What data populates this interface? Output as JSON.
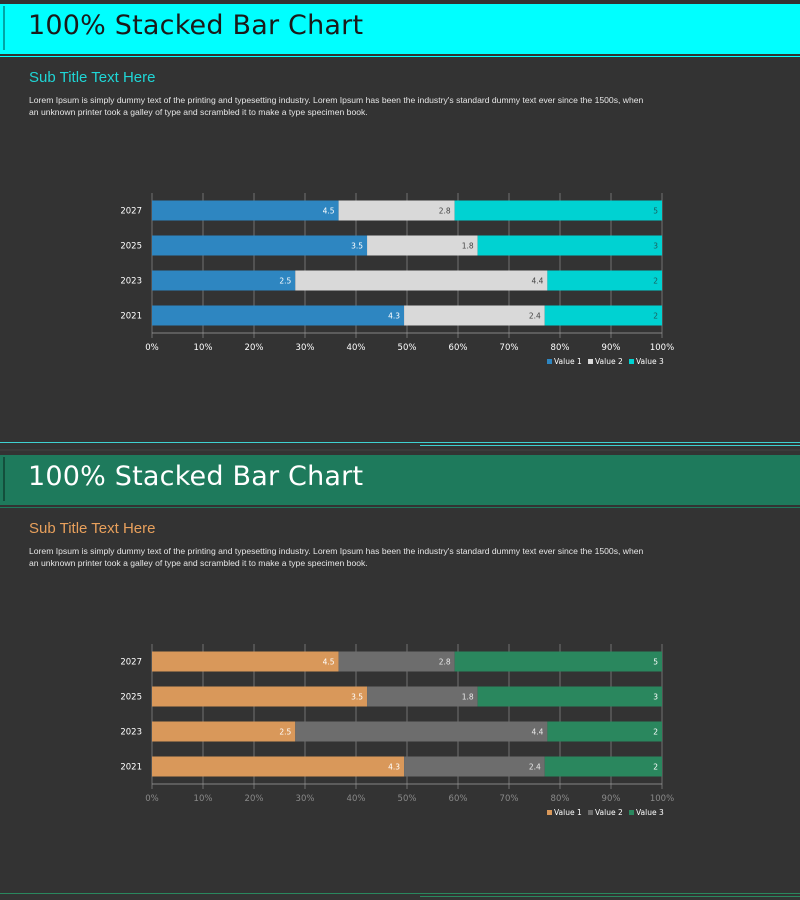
{
  "slides": [
    {
      "title": "100% Stacked Bar Chart",
      "subtitle": "Sub Title Text Here",
      "body": "Lorem Ipsum is simply dummy text of the printing and typesetting industry. Lorem Ipsum has been the industry's standard dummy text ever since the 1500s, when an unknown printer took a galley of type and scrambled it to make a type specimen book.",
      "colors": {
        "band": "#00ffff",
        "subtitle": "#1fd6d6",
        "title_text": "#1a1a1a",
        "series": [
          "#2e86c1",
          "#d9d9d9",
          "#00d2d2"
        ],
        "axis_text": "#ffffff",
        "line": "#3fd1d1"
      }
    },
    {
      "title": "100% Stacked Bar Chart",
      "subtitle": "Sub Title Text Here",
      "body": "Lorem Ipsum is simply dummy text of the printing and typesetting industry. Lorem Ipsum has been the industry's standard dummy text ever since the 1500s, when an unknown printer took a galley of type and scrambled it to make a type specimen book.",
      "colors": {
        "band": "#1e7a5c",
        "subtitle": "#e8a05c",
        "title_text": "#ffffff",
        "series": [
          "#d9985a",
          "#6d6d6d",
          "#2a875e"
        ],
        "axis_text": "#8a8a8a",
        "line": "#2a875e"
      }
    }
  ],
  "chart_data": [
    {
      "type": "bar",
      "stacked": "100%",
      "orientation": "horizontal",
      "categories": [
        "2021",
        "2023",
        "2025",
        "2027"
      ],
      "series": [
        {
          "name": "Value  1",
          "values": [
            4.3,
            2.5,
            3.5,
            4.5
          ]
        },
        {
          "name": "Value  2",
          "values": [
            2.4,
            4.4,
            1.8,
            2.8
          ]
        },
        {
          "name": "Value  3",
          "values": [
            2,
            2,
            3,
            5
          ]
        }
      ],
      "xticks": [
        "0%",
        "10%",
        "20%",
        "30%",
        "40%",
        "50%",
        "60%",
        "70%",
        "80%",
        "90%",
        "100%"
      ],
      "xlim": [
        0,
        100
      ],
      "grid": true,
      "legend": "bottom-right"
    },
    {
      "type": "bar",
      "stacked": "100%",
      "orientation": "horizontal",
      "categories": [
        "2021",
        "2023",
        "2025",
        "2027"
      ],
      "series": [
        {
          "name": "Value  1",
          "values": [
            4.3,
            2.5,
            3.5,
            4.5
          ]
        },
        {
          "name": "Value  2",
          "values": [
            2.4,
            4.4,
            1.8,
            2.8
          ]
        },
        {
          "name": "Value  3",
          "values": [
            2,
            2,
            3,
            5
          ]
        }
      ],
      "xticks": [
        "0%",
        "10%",
        "20%",
        "30%",
        "40%",
        "50%",
        "60%",
        "70%",
        "80%",
        "90%",
        "100%"
      ],
      "xlim": [
        0,
        100
      ],
      "grid": true,
      "legend": "bottom-right"
    }
  ]
}
